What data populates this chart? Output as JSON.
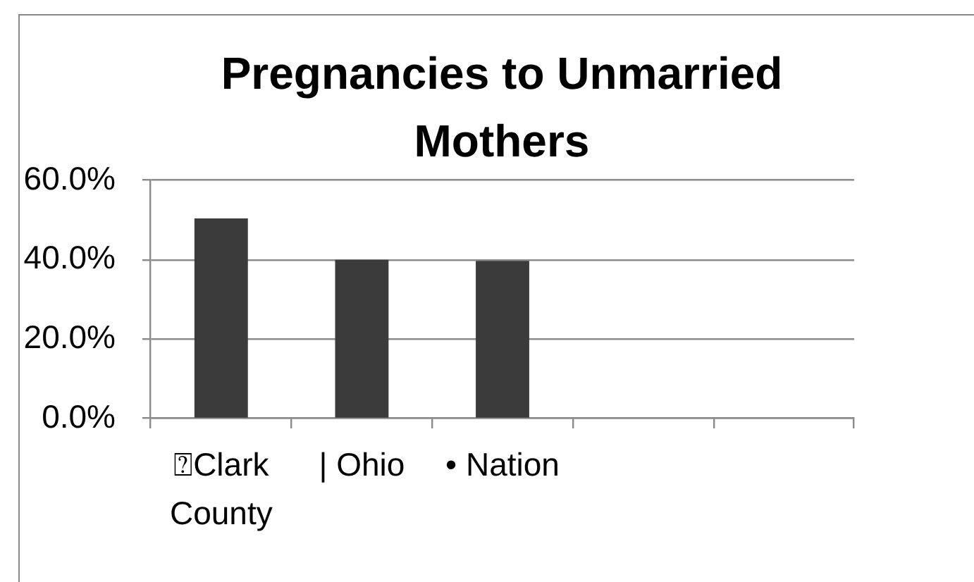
{
  "chart_data": {
    "type": "bar",
    "title": "Pregnancies to Unmarried Mothers",
    "categories": [
      "⍰Clark County",
      "| Ohio",
      "• Nation",
      null,
      null
    ],
    "values": [
      50.4,
      40.0,
      39.7,
      null,
      null
    ],
    "color": "#3b3b3b",
    "ylim": [
      0,
      60
    ],
    "yticks": [
      {
        "value": 0,
        "label": "0.0%"
      },
      {
        "value": 20,
        "label": "20.0%"
      },
      {
        "value": 40,
        "label": "40.0%"
      },
      {
        "value": 60,
        "label": "60.0%"
      }
    ],
    "grid": "y"
  }
}
